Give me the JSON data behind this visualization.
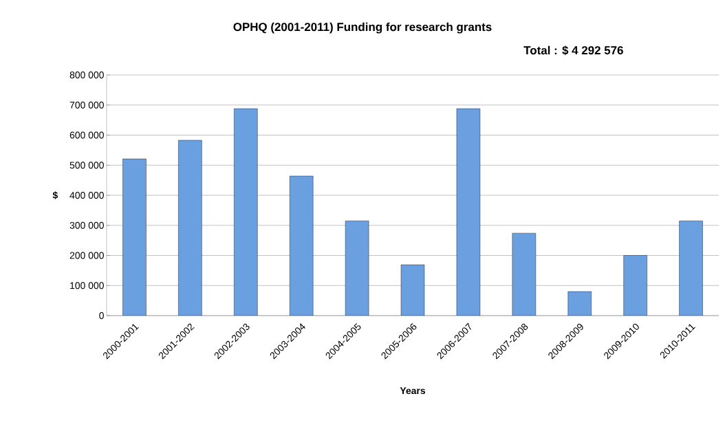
{
  "chart_data": {
    "type": "bar",
    "title": "OPHQ (2001-2011) Funding for research grants",
    "subtitle": "Total : $ 4 292 576",
    "xlabel": "Years",
    "ylabel": "$",
    "categories": [
      "2000-2001",
      "2001-2002",
      "2002-2003",
      "2003-2004",
      "2004-2005",
      "2005-2006",
      "2006-2007",
      "2007-2008",
      "2008-2009",
      "2009-2010",
      "2010-2011"
    ],
    "values": [
      521000,
      583000,
      688000,
      464000,
      315000,
      169000,
      688000,
      274000,
      80000,
      200000,
      315000
    ],
    "color": "#6a9fe0",
    "ylim": [
      0,
      800000
    ],
    "yticks": [
      {
        "value": 0,
        "label": "0"
      },
      {
        "value": 100000,
        "label": "100 000"
      },
      {
        "value": 200000,
        "label": "200 000"
      },
      {
        "value": 300000,
        "label": "300 000"
      },
      {
        "value": 400000,
        "label": "400 000"
      },
      {
        "value": 500000,
        "label": "500 000"
      },
      {
        "value": 600000,
        "label": "600 000"
      },
      {
        "value": 700000,
        "label": "700 000"
      },
      {
        "value": 800000,
        "label": "800 000"
      }
    ],
    "grid": "y"
  }
}
